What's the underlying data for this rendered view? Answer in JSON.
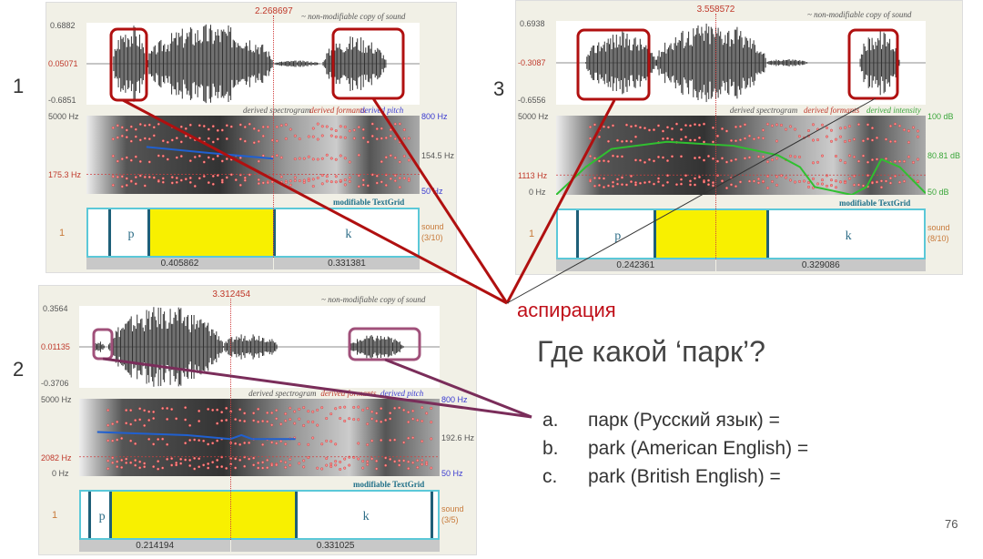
{
  "slide_number": "76",
  "annotation_label": "аспирация",
  "question": "Где какой ‘парк’?",
  "answers": [
    {
      "marker": "a.",
      "text": "парк (Русский язык) ="
    },
    {
      "marker": "b.",
      "text": "park (American English) ="
    },
    {
      "marker": "c.",
      "text": "park (British English) ="
    }
  ],
  "colors": {
    "annotation_red": "#b01010",
    "annotation_purple": "#7a2d5a",
    "interval_selected": "#f8f000",
    "textgrid_border": "#5bc8d8"
  },
  "common": {
    "sound_title": "~ non-modifiable copy of sound",
    "spectrogram_legend": "derived spectrogram",
    "formants_legend": "derived formants",
    "pitch_legend": "derived pitch",
    "intensity_legend": "derived intensity",
    "textgrid_title": "modifiable TextGrid",
    "tier_number": "1"
  },
  "panels": [
    {
      "number": "1",
      "cursor_time": "2.268697",
      "amp_max": "0.6882",
      "amp_cursor": "0.05071",
      "amp_min": "-0.6851",
      "freq_max": "5000 Hz",
      "freq_cursor": "175.3 Hz",
      "freq_min": "",
      "right_top": "800 Hz",
      "right_mid": "154.5 Hz",
      "right_bot": "50 Hz",
      "right_mode": "pitch",
      "tier_name": "sound",
      "tier_count": "(3/10)",
      "seg_p": "p",
      "seg_k": "k",
      "dur_left": "0.405862",
      "dur_right": "0.331381"
    },
    {
      "number": "2",
      "cursor_time": "3.312454",
      "amp_max": "0.3564",
      "amp_cursor": "0.01135",
      "amp_min": "-0.3706",
      "freq_max": "5000 Hz",
      "freq_cursor": "2082 Hz",
      "freq_min": "0 Hz",
      "right_top": "800 Hz",
      "right_mid": "192.6 Hz",
      "right_bot": "50 Hz",
      "right_mode": "pitch",
      "tier_name": "sound",
      "tier_count": "(3/5)",
      "seg_p": "p",
      "seg_k": "k",
      "dur_left": "0.214194",
      "dur_right": "0.331025"
    },
    {
      "number": "3",
      "cursor_time": "3.558572",
      "amp_max": "0.6938",
      "amp_cursor": "-0.3087",
      "amp_min": "-0.6556",
      "freq_max": "5000 Hz",
      "freq_cursor": "1113 Hz",
      "freq_min": "0 Hz",
      "right_top": "100 dB",
      "right_mid": "80.81 dB",
      "right_bot": "50 dB",
      "right_mode": "intensity",
      "tier_name": "sound",
      "tier_count": "(8/10)",
      "seg_p": "p",
      "seg_k": "k",
      "dur_left": "0.242361",
      "dur_right": "0.329086"
    }
  ]
}
